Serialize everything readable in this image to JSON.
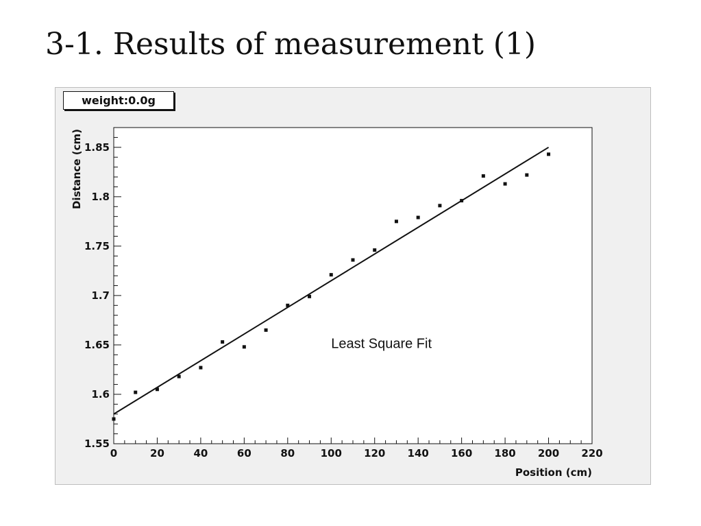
{
  "slide": {
    "title": "3-1. Results of measurement (1)"
  },
  "chart_data": {
    "type": "scatter",
    "stats_box": "weight:0.0g",
    "xlabel": "Position (cm)",
    "ylabel": "Distance (cm)",
    "annotation": "Least Square Fit",
    "xlim": [
      0,
      220
    ],
    "ylim": [
      1.55,
      1.87
    ],
    "x_ticks": [
      0,
      20,
      40,
      60,
      80,
      100,
      120,
      140,
      160,
      180,
      200,
      220
    ],
    "y_ticks": [
      1.55,
      1.6,
      1.65,
      1.7,
      1.75,
      1.8,
      1.85
    ],
    "x_tick_labels": [
      "0",
      "20",
      "40",
      "60",
      "80",
      "100",
      "120",
      "140",
      "160",
      "180",
      "200",
      "220"
    ],
    "y_tick_labels": [
      "1.55",
      "1.6",
      "1.65",
      "1.7",
      "1.75",
      "1.8",
      "1.85"
    ],
    "grid": false,
    "series": [
      {
        "kind": "points",
        "x": [
          0,
          10,
          20,
          30,
          40,
          50,
          60,
          70,
          80,
          90,
          100,
          110,
          120,
          130,
          140,
          150,
          160,
          170,
          180,
          190,
          200
        ],
        "y": [
          1.575,
          1.602,
          1.605,
          1.618,
          1.627,
          1.653,
          1.648,
          1.665,
          1.69,
          1.699,
          1.721,
          1.736,
          1.746,
          1.775,
          1.779,
          1.791,
          1.796,
          1.821,
          1.813,
          1.822,
          1.843
        ]
      },
      {
        "kind": "fit-line",
        "x": [
          0,
          200
        ],
        "y": [
          1.58,
          1.85
        ]
      }
    ],
    "colors": {
      "points": "#111111",
      "line": "#111111",
      "frame_bg": "#ffffff",
      "canvas_bg": "#f0f0f0"
    }
  }
}
